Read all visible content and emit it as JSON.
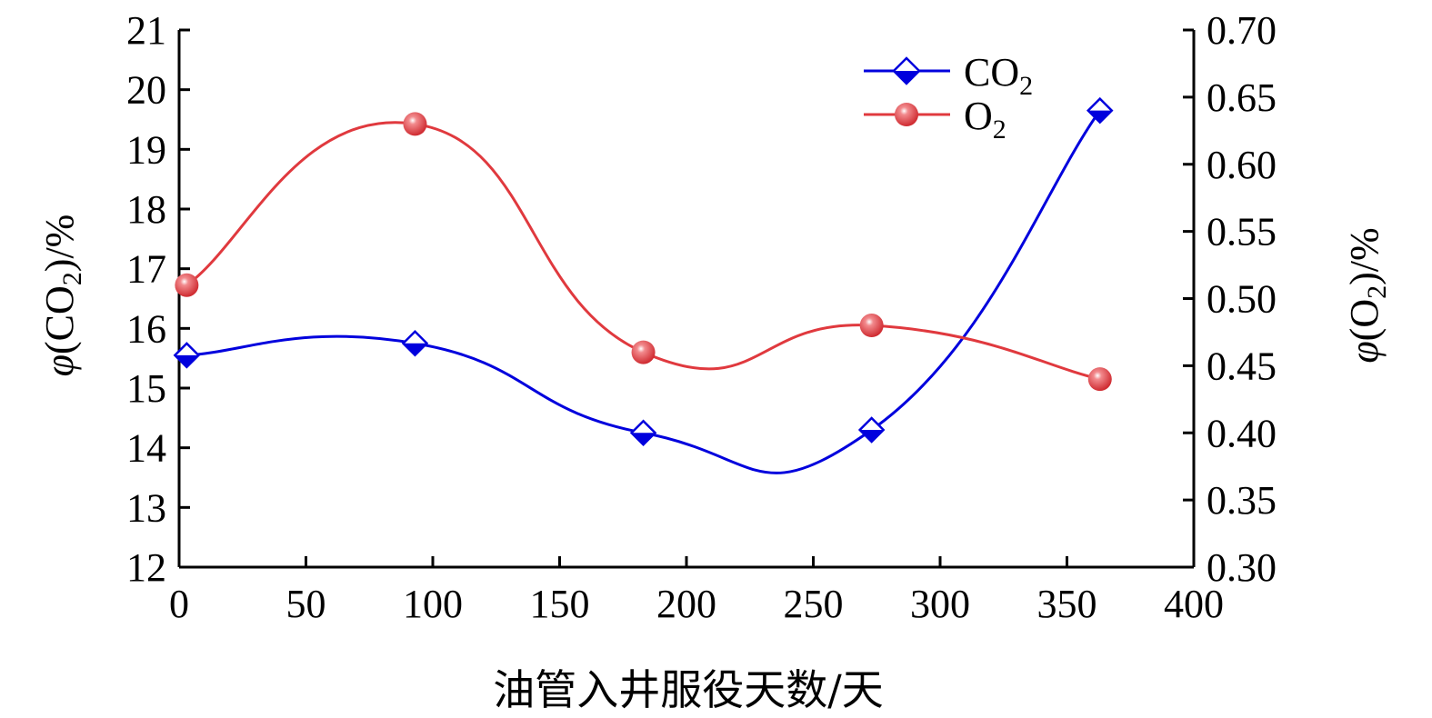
{
  "chart_data": {
    "type": "line",
    "xlabel": "油管入井服役天数/天",
    "ylabel_left": {
      "prefix": "φ",
      "open": "(CO",
      "sub": "2",
      "close": ")/%"
    },
    "ylabel_right": {
      "prefix": "φ",
      "open": "(O",
      "sub": "2",
      "close": ")/%"
    },
    "xlim": [
      0,
      400
    ],
    "ylim_left": [
      12,
      21
    ],
    "ylim_right": [
      0.3,
      0.7
    ],
    "x_ticks": [
      0,
      50,
      100,
      150,
      200,
      250,
      300,
      350,
      400
    ],
    "y_left_ticks": [
      12,
      13,
      14,
      15,
      16,
      17,
      18,
      19,
      20,
      21
    ],
    "y_right_ticks": [
      "0.30",
      "0.35",
      "0.40",
      "0.45",
      "0.50",
      "0.55",
      "0.60",
      "0.65",
      "0.70"
    ],
    "grid": false,
    "legend_position": "top-right",
    "series": [
      {
        "name": "CO2",
        "label_main": "CO",
        "label_sub": "2",
        "axis": "left",
        "color": "#0000dd",
        "marker": "diamond",
        "x": [
          3,
          93,
          183,
          273,
          363
        ],
        "y": [
          15.55,
          15.75,
          14.25,
          14.3,
          19.65
        ]
      },
      {
        "name": "O2",
        "label_main": "O",
        "label_sub": "2",
        "axis": "right",
        "color": "#e0393e",
        "marker": "circle",
        "x": [
          3,
          93,
          183,
          273,
          363
        ],
        "y": [
          0.51,
          0.63,
          0.46,
          0.48,
          0.44
        ]
      }
    ]
  }
}
